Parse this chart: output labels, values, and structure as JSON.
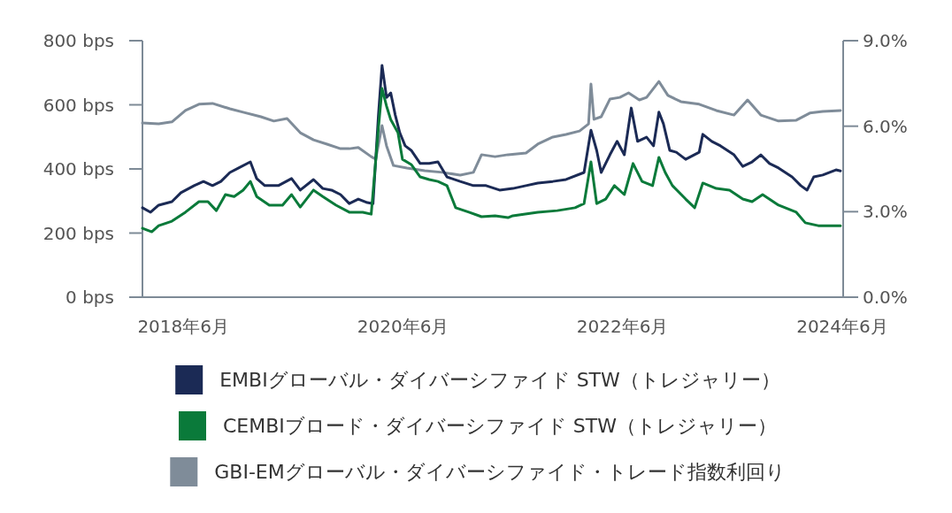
{
  "chart_data": {
    "type": "line",
    "legend": "bottom",
    "line_style": "solid",
    "marker": "none",
    "grid": false,
    "xlim": [
      "2018-01-30",
      "2024-06-18"
    ],
    "xticks": [
      {
        "value": "2018-06-15",
        "label": "2018年6月"
      },
      {
        "value": "2020-06-15",
        "label": "2020年6月"
      },
      {
        "value": "2022-06-15",
        "label": "2022年6月"
      },
      {
        "value": "2024-06-15",
        "label": "2024年6月"
      }
    ],
    "ylim": [
      0,
      800
    ],
    "yticks": [
      {
        "value": 0,
        "label": "0 bps"
      },
      {
        "value": 200,
        "label": "200 bps"
      },
      {
        "value": 400,
        "label": "400 bps"
      },
      {
        "value": 600,
        "label": "600 bps"
      },
      {
        "value": 800,
        "label": "800 bps"
      }
    ],
    "y2lim": [
      0,
      9
    ],
    "y2ticks": [
      {
        "value": 0,
        "label": "0.0%"
      },
      {
        "value": 3,
        "label": "3.0%"
      },
      {
        "value": 6,
        "label": "6.0%"
      },
      {
        "value": 9,
        "label": "9.0%"
      }
    ],
    "series": [
      {
        "name": "EMBIグローバル・ダイバーシファイド STW（トレジャリー）",
        "color": "#1b2a55",
        "x": [
          "2018-01-30",
          "2018-02-26",
          "2018-03-25",
          "2018-05-08",
          "2018-06-07",
          "2018-07-21",
          "2018-08-21",
          "2018-09-20",
          "2018-10-18",
          "2018-11-17",
          "2018-12-16",
          "2019-01-24",
          "2019-02-14",
          "2019-03-13",
          "2019-04-27",
          "2019-06-10",
          "2019-07-09",
          "2019-08-22",
          "2019-09-22",
          "2019-10-21",
          "2019-11-20",
          "2019-12-19",
          "2020-01-18",
          "2020-02-17",
          "2020-03-07",
          "2020-03-25",
          "2020-04-06",
          "2020-04-21",
          "2020-05-05",
          "2020-05-20",
          "2020-06-04",
          "2020-06-22",
          "2020-07-12",
          "2020-08-11",
          "2020-09-10",
          "2020-10-09",
          "2020-11-08",
          "2020-12-22",
          "2021-02-04",
          "2021-03-18",
          "2021-05-02",
          "2021-06-15",
          "2021-07-29",
          "2021-09-06",
          "2021-10-26",
          "2021-12-09",
          "2022-02-07",
          "2022-03-02",
          "2022-03-21",
          "2022-04-05",
          "2022-05-04",
          "2022-05-28",
          "2022-06-21",
          "2022-07-14",
          "2022-08-04",
          "2022-09-03",
          "2022-09-26",
          "2022-10-14",
          "2022-10-29",
          "2022-11-19",
          "2022-12-11",
          "2023-01-11",
          "2023-02-25",
          "2023-03-09",
          "2023-04-08",
          "2023-05-07",
          "2023-06-21",
          "2023-07-20",
          "2023-08-20",
          "2023-09-18",
          "2023-10-17",
          "2023-11-16",
          "2023-12-31",
          "2024-01-29",
          "2024-02-19",
          "2024-03-12",
          "2024-04-11",
          "2024-05-25",
          "2024-06-09"
        ],
        "values": [
          279,
          265,
          287,
          298,
          326,
          348,
          361,
          348,
          361,
          389,
          403,
          422,
          370,
          348,
          348,
          370,
          334,
          367,
          339,
          334,
          320,
          292,
          306,
          295,
          292,
          568,
          723,
          623,
          637,
          568,
          513,
          472,
          458,
          417,
          417,
          422,
          375,
          361,
          348,
          348,
          334,
          339,
          348,
          356,
          361,
          367,
          389,
          521,
          458,
          389,
          444,
          486,
          444,
          590,
          486,
          499,
          472,
          577,
          541,
          458,
          452,
          430,
          452,
          508,
          486,
          472,
          444,
          408,
          422,
          444,
          417,
          403,
          375,
          348,
          334,
          375,
          381,
          397,
          394
        ]
      },
      {
        "name": "CEMBIブロード・ダイバーシファイド STW（トレジャリー）",
        "color": "#0a7a3a",
        "x": [
          "2018-01-30",
          "2018-03-02",
          "2018-03-25",
          "2018-05-08",
          "2018-06-22",
          "2018-08-06",
          "2018-09-05",
          "2018-10-03",
          "2018-11-02",
          "2018-12-01",
          "2018-12-31",
          "2019-01-24",
          "2019-02-14",
          "2019-03-28",
          "2019-05-11",
          "2019-06-10",
          "2019-07-09",
          "2019-08-22",
          "2019-09-22",
          "2019-11-05",
          "2019-12-19",
          "2020-02-02",
          "2020-03-01",
          "2020-03-25",
          "2020-04-06",
          "2020-04-21",
          "2020-05-05",
          "2020-05-29",
          "2020-06-13",
          "2020-07-12",
          "2020-08-11",
          "2020-09-10",
          "2020-10-09",
          "2020-11-08",
          "2020-12-07",
          "2021-01-20",
          "2021-03-03",
          "2021-04-17",
          "2021-05-30",
          "2021-06-15",
          "2021-09-06",
          "2021-11-10",
          "2022-01-08",
          "2022-02-07",
          "2022-03-02",
          "2022-03-21",
          "2022-04-20",
          "2022-05-19",
          "2022-06-21",
          "2022-07-20",
          "2022-08-19",
          "2022-09-23",
          "2022-10-14",
          "2022-11-04",
          "2022-11-28",
          "2023-01-11",
          "2023-02-10",
          "2023-03-09",
          "2023-04-23",
          "2023-06-06",
          "2023-07-20",
          "2023-08-20",
          "2023-09-24",
          "2023-11-16",
          "2024-01-14",
          "2024-02-13",
          "2024-03-27",
          "2024-06-09"
        ],
        "values": [
          215,
          204,
          223,
          237,
          265,
          298,
          298,
          270,
          320,
          314,
          334,
          361,
          314,
          287,
          287,
          320,
          281,
          334,
          314,
          287,
          265,
          265,
          259,
          527,
          651,
          596,
          554,
          513,
          430,
          414,
          375,
          367,
          361,
          348,
          279,
          265,
          251,
          254,
          248,
          254,
          265,
          270,
          279,
          292,
          422,
          292,
          306,
          348,
          320,
          417,
          361,
          348,
          436,
          389,
          348,
          306,
          279,
          356,
          339,
          334,
          306,
          298,
          320,
          287,
          265,
          232,
          223,
          223
        ]
      },
      {
        "name": "GBI-EMグローバル・ダイバーシファイド・トレード指数利回り",
        "color": "#7f8c99",
        "axis": "y2",
        "x": [
          "2018-01-30",
          "2018-03-25",
          "2018-05-08",
          "2018-06-22",
          "2018-08-06",
          "2018-09-20",
          "2018-11-17",
          "2018-12-31",
          "2019-02-28",
          "2019-04-12",
          "2019-05-26",
          "2019-07-09",
          "2019-08-22",
          "2019-10-06",
          "2019-11-20",
          "2019-12-19",
          "2020-01-18",
          "2020-03-01",
          "2020-03-16",
          "2020-04-06",
          "2020-04-21",
          "2020-05-14",
          "2020-06-28",
          "2020-08-26",
          "2020-10-24",
          "2020-12-22",
          "2021-02-04",
          "2021-03-03",
          "2021-04-17",
          "2021-05-30",
          "2021-07-29",
          "2021-09-06",
          "2021-10-26",
          "2021-12-09",
          "2022-01-23",
          "2022-02-22",
          "2022-03-02",
          "2022-03-12",
          "2022-04-05",
          "2022-05-04",
          "2022-06-06",
          "2022-07-05",
          "2022-08-10",
          "2022-09-03",
          "2022-10-14",
          "2022-11-13",
          "2022-12-26",
          "2023-02-25",
          "2023-04-23",
          "2023-06-21",
          "2023-08-05",
          "2023-09-18",
          "2023-11-16",
          "2024-01-14",
          "2024-02-28",
          "2024-04-11",
          "2024-06-09"
        ],
        "values": [
          6.11,
          6.08,
          6.15,
          6.55,
          6.77,
          6.8,
          6.61,
          6.49,
          6.33,
          6.18,
          6.27,
          5.77,
          5.52,
          5.37,
          5.21,
          5.21,
          5.25,
          4.93,
          4.84,
          6.02,
          5.31,
          4.62,
          4.53,
          4.44,
          4.38,
          4.28,
          4.38,
          5.0,
          4.93,
          5.0,
          5.06,
          5.37,
          5.62,
          5.71,
          5.83,
          6.08,
          7.48,
          6.24,
          6.33,
          6.95,
          7.01,
          7.17,
          6.92,
          7.01,
          7.57,
          7.08,
          6.86,
          6.77,
          6.55,
          6.39,
          6.92,
          6.39,
          6.18,
          6.21,
          6.46,
          6.52,
          6.55
        ]
      }
    ]
  }
}
